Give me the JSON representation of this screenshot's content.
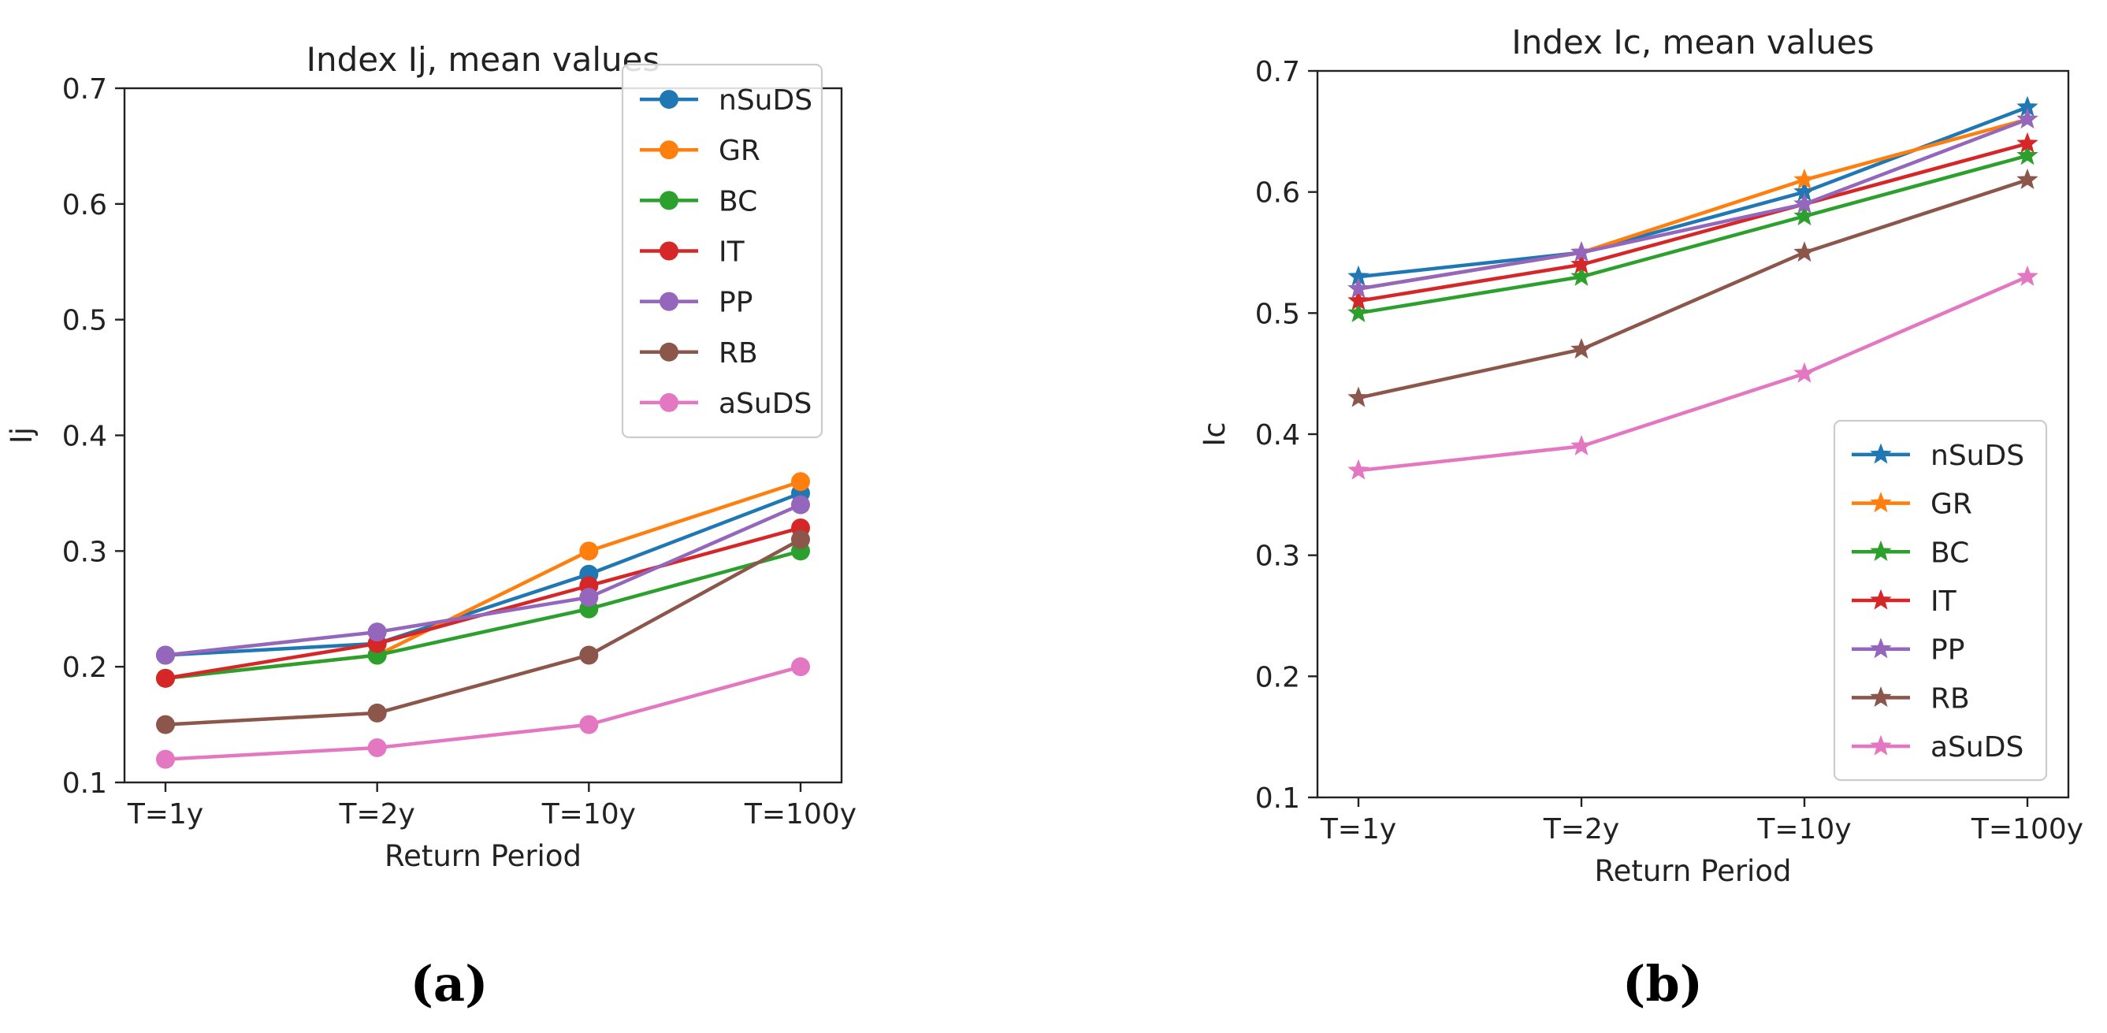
{
  "figure": {
    "panel_labels": [
      "(a)",
      "(b)"
    ]
  },
  "chart_data": [
    {
      "type": "line",
      "title": "Index Ij, mean values",
      "xlabel": "Return Period",
      "ylabel": "Ij",
      "categories": [
        "T=1y",
        "T=2y",
        "T=10y",
        "T=100y"
      ],
      "ylim": [
        0.1,
        0.7
      ],
      "yticks": [
        "0.1",
        "0.2",
        "0.3",
        "0.4",
        "0.5",
        "0.6",
        "0.7"
      ],
      "marker": "circle",
      "grid": false,
      "legend_position": "upper-right",
      "series": [
        {
          "name": "nSuDS",
          "color": "#1f77b4",
          "values": [
            0.21,
            0.22,
            0.28,
            0.35
          ]
        },
        {
          "name": "GR",
          "color": "#ff7f0e",
          "values": [
            0.19,
            0.21,
            0.3,
            0.36
          ]
        },
        {
          "name": "BC",
          "color": "#2ca02c",
          "values": [
            0.19,
            0.21,
            0.25,
            0.3
          ]
        },
        {
          "name": "IT",
          "color": "#d62728",
          "values": [
            0.19,
            0.22,
            0.27,
            0.32
          ]
        },
        {
          "name": "PP",
          "color": "#9467bd",
          "values": [
            0.21,
            0.23,
            0.26,
            0.34
          ]
        },
        {
          "name": "RB",
          "color": "#8c564b",
          "values": [
            0.15,
            0.16,
            0.21,
            0.31
          ]
        },
        {
          "name": "aSuDS",
          "color": "#e377c2",
          "values": [
            0.12,
            0.13,
            0.15,
            0.2
          ]
        }
      ]
    },
    {
      "type": "line",
      "title": "Index Ic, mean values",
      "xlabel": "Return Period",
      "ylabel": "Ic",
      "categories": [
        "T=1y",
        "T=2y",
        "T=10y",
        "T=100y"
      ],
      "ylim": [
        0.1,
        0.7
      ],
      "yticks": [
        "0.1",
        "0.2",
        "0.3",
        "0.4",
        "0.5",
        "0.6",
        "0.7"
      ],
      "marker": "star",
      "grid": false,
      "legend_position": "lower-right",
      "series": [
        {
          "name": "nSuDS",
          "color": "#1f77b4",
          "values": [
            0.53,
            0.55,
            0.6,
            0.67
          ]
        },
        {
          "name": "GR",
          "color": "#ff7f0e",
          "values": [
            0.52,
            0.55,
            0.61,
            0.66
          ]
        },
        {
          "name": "BC",
          "color": "#2ca02c",
          "values": [
            0.5,
            0.53,
            0.58,
            0.63
          ]
        },
        {
          "name": "IT",
          "color": "#d62728",
          "values": [
            0.51,
            0.54,
            0.59,
            0.64
          ]
        },
        {
          "name": "PP",
          "color": "#9467bd",
          "values": [
            0.52,
            0.55,
            0.59,
            0.66
          ]
        },
        {
          "name": "RB",
          "color": "#8c564b",
          "values": [
            0.43,
            0.47,
            0.55,
            0.61
          ]
        },
        {
          "name": "aSuDS",
          "color": "#e377c2",
          "values": [
            0.37,
            0.39,
            0.45,
            0.53
          ]
        }
      ]
    }
  ]
}
